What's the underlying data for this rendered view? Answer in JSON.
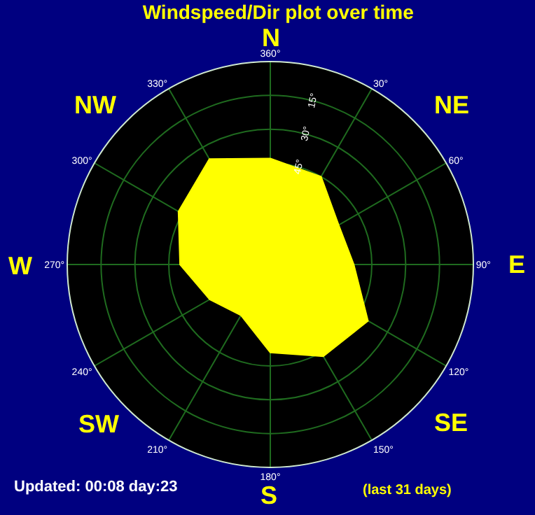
{
  "chart_data": {
    "type": "radar",
    "title": "Windspeed/Dir plot over time",
    "categories": [
      "360°",
      "30°",
      "60°",
      "90°",
      "120°",
      "150°",
      "180°",
      "210°",
      "240°",
      "270°",
      "300°",
      "330°"
    ],
    "values": [
      43,
      45,
      55,
      53,
      40,
      43,
      51,
      64,
      59,
      50,
      43,
      36
    ],
    "color": "#ffff00",
    "ylim": [
      90,
      0
    ],
    "yticks": [
      {
        "value": 45,
        "label": "45°"
      },
      {
        "value": 30,
        "label": "30°"
      },
      {
        "value": 15,
        "label": "15°"
      }
    ],
    "grid": true,
    "annotations": [
      "N",
      "NE",
      "E",
      "SE",
      "S",
      "SW",
      "W",
      "NW",
      "Updated: 00:08 day:23",
      "(last 31 days)"
    ]
  }
}
